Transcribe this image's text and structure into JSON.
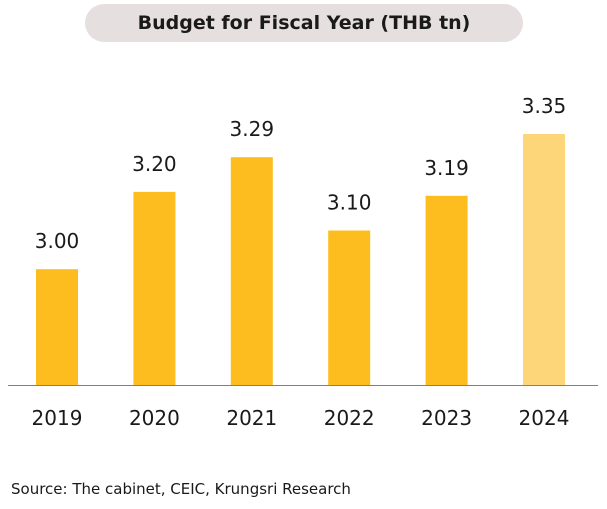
{
  "chart_data": {
    "type": "bar",
    "title": "Budget for Fiscal Year (THB tn)",
    "categories": [
      "2019",
      "2020",
      "2021",
      "2022",
      "2023",
      "2024"
    ],
    "values": [
      3.0,
      3.2,
      3.29,
      3.1,
      3.19,
      3.35
    ],
    "value_labels": [
      "3.00",
      "3.20",
      "3.29",
      "3.10",
      "3.19",
      "3.35"
    ],
    "xlabel": "",
    "ylabel": "",
    "ylim": [
      2.7,
      3.35
    ],
    "grid": false,
    "legend": "none",
    "colors": {
      "bar": "#FDBD1F",
      "bar_highlight": "#FED67A",
      "axis": "#808080"
    },
    "highlight_index": 5
  },
  "source_note": "Source: The cabinet, CEIC, Krungsri Research"
}
